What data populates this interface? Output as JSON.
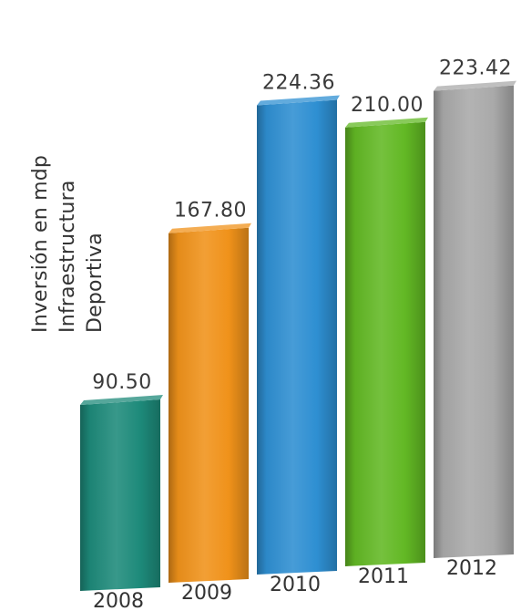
{
  "chart_data": {
    "type": "bar",
    "title": "",
    "ylabel_lines": [
      "Inversión en mdp",
      "Infraestructura",
      "Deportiva"
    ],
    "xlabel": "",
    "categories": [
      "2008",
      "2009",
      "2010",
      "2011",
      "2012"
    ],
    "values": [
      90.5,
      167.8,
      224.36,
      210.0,
      223.42
    ],
    "value_labels": [
      "90.50",
      "167.80",
      "224.36",
      "210.00",
      "223.42"
    ],
    "colors": [
      "#1d8a7a",
      "#f0921a",
      "#2e8fd2",
      "#62b824",
      "#a9a9a9"
    ],
    "ylim": [
      0,
      230
    ],
    "style": "3d-perspective",
    "legend": "none",
    "grid": false
  }
}
